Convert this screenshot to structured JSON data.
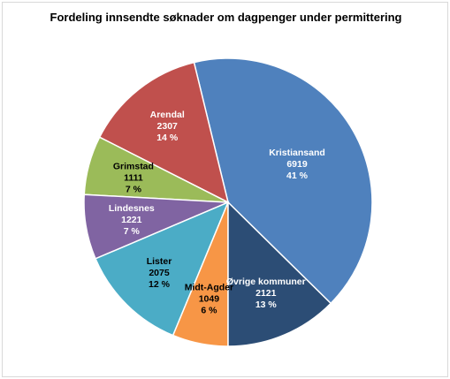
{
  "chart_data": {
    "type": "pie",
    "title": "Fordeling innsendte søknader om dagpenger under permittering",
    "start_category": "Øvrige kommuner",
    "direction": "counterclockwise",
    "slices": [
      {
        "label": "Kristiansand",
        "value": 6919,
        "percent": "41 %",
        "color": "#4f81bd",
        "text_color": "#ffffff"
      },
      {
        "label": "Arendal",
        "value": 2307,
        "percent": "14 %",
        "color": "#c0504d",
        "text_color": "#ffffff"
      },
      {
        "label": "Grimstad",
        "value": 1111,
        "percent": "7 %",
        "color": "#9bbb59",
        "text_color": "#000000"
      },
      {
        "label": "Lindesnes",
        "value": 1221,
        "percent": "7 %",
        "color": "#8064a2",
        "text_color": "#ffffff"
      },
      {
        "label": "Lister",
        "value": 2075,
        "percent": "12 %",
        "color": "#4bacc6",
        "text_color": "#000000"
      },
      {
        "label": "Midt-Agder",
        "value": 1049,
        "percent": "6 %",
        "color": "#f79646",
        "text_color": "#000000"
      },
      {
        "label": "Øvrige kommuner",
        "value": 2121,
        "percent": "13 %",
        "color": "#2c4d75",
        "text_color": "#ffffff"
      }
    ]
  }
}
